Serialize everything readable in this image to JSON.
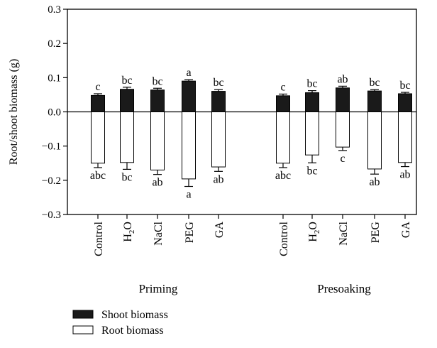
{
  "chart_data": {
    "type": "bar",
    "ylabel": "Root/shoot biomass (g)",
    "ylim": [
      -0.3,
      0.3
    ],
    "yticks": [
      {
        "value": 0.3,
        "label": "0.3"
      },
      {
        "value": 0.2,
        "label": "0.2"
      },
      {
        "value": 0.1,
        "label": "0.1"
      },
      {
        "value": 0.0,
        "label": "0.0"
      },
      {
        "value": -0.1,
        "label": "-0.1"
      },
      {
        "value": -0.2,
        "label": "-0.2"
      },
      {
        "value": -0.3,
        "label": "-0.3"
      }
    ],
    "groups": [
      {
        "name": "Priming",
        "categories": [
          "Control",
          "H2O",
          "NaCl",
          "PEG",
          "GA"
        ],
        "shoot": [
          0.048,
          0.066,
          0.064,
          0.09,
          0.06
        ],
        "shoot_err": [
          0.005,
          0.006,
          0.005,
          0.004,
          0.005
        ],
        "shoot_sig": [
          "c",
          "bc",
          "bc",
          "a",
          "bc"
        ],
        "root": [
          -0.15,
          -0.148,
          -0.17,
          -0.196,
          -0.161
        ],
        "root_err": [
          0.013,
          0.02,
          0.013,
          0.022,
          0.013
        ],
        "root_sig": [
          "abc",
          "bc",
          "ab",
          "a",
          "ab"
        ]
      },
      {
        "name": "Presoaking",
        "categories": [
          "Control",
          "H2O",
          "NaCl",
          "PEG",
          "GA"
        ],
        "shoot": [
          0.047,
          0.056,
          0.07,
          0.061,
          0.053
        ],
        "shoot_err": [
          0.005,
          0.006,
          0.005,
          0.004,
          0.004
        ],
        "shoot_sig": [
          "c",
          "bc",
          "ab",
          "bc",
          "bc"
        ],
        "root": [
          -0.15,
          -0.126,
          -0.103,
          -0.167,
          -0.148
        ],
        "root_err": [
          0.013,
          0.023,
          0.01,
          0.015,
          0.012
        ],
        "root_sig": [
          "abc",
          "bc",
          "c",
          "ab",
          "ab"
        ]
      }
    ],
    "legend": {
      "placement": "bottom-left",
      "entries": [
        {
          "label": "Shoot biomass",
          "color": "#1a1a1a"
        },
        {
          "label": "Root biomass",
          "color": "#ffffff"
        }
      ]
    },
    "colors": {
      "shoot": "#1a1a1a",
      "root": "#ffffff",
      "axis": "#000000"
    }
  }
}
